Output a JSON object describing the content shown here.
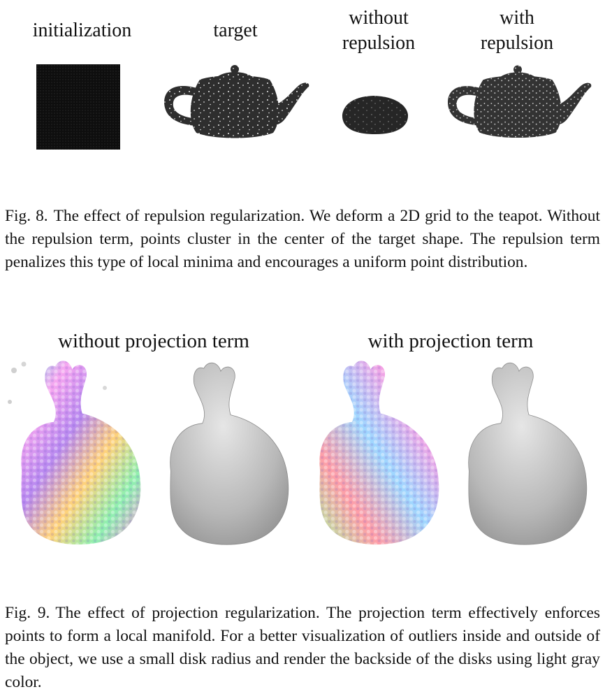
{
  "figure8": {
    "panels": [
      {
        "label": "initialization"
      },
      {
        "label": "target"
      },
      {
        "label": "without repulsion"
      },
      {
        "label": "with repulsion"
      }
    ],
    "caption_number": "Fig. 8.",
    "caption_text": "The effect of repulsion regularization. We deform a 2D grid to the teapot. Without the repulsion term, points cluster in the center of the target shape. The repulsion term penalizes this type of local minima and encourages a uniform point distribution."
  },
  "figure9": {
    "panels": [
      {
        "label": "without projection term"
      },
      {
        "label": "with projection term"
      }
    ],
    "caption_number": "Fig. 9.",
    "caption_text": "The effect of projection regularization. The projection term effectively enforces points to form a local manifold. For a better visualization of outliers inside and outside of the object, we use a small disk radius and render the backside of the disks using light gray color."
  },
  "colors": {
    "point_dark": "#2b2b2b",
    "grid_black": "#0e0e0e",
    "mesh_gray": "#bdbdbd"
  }
}
